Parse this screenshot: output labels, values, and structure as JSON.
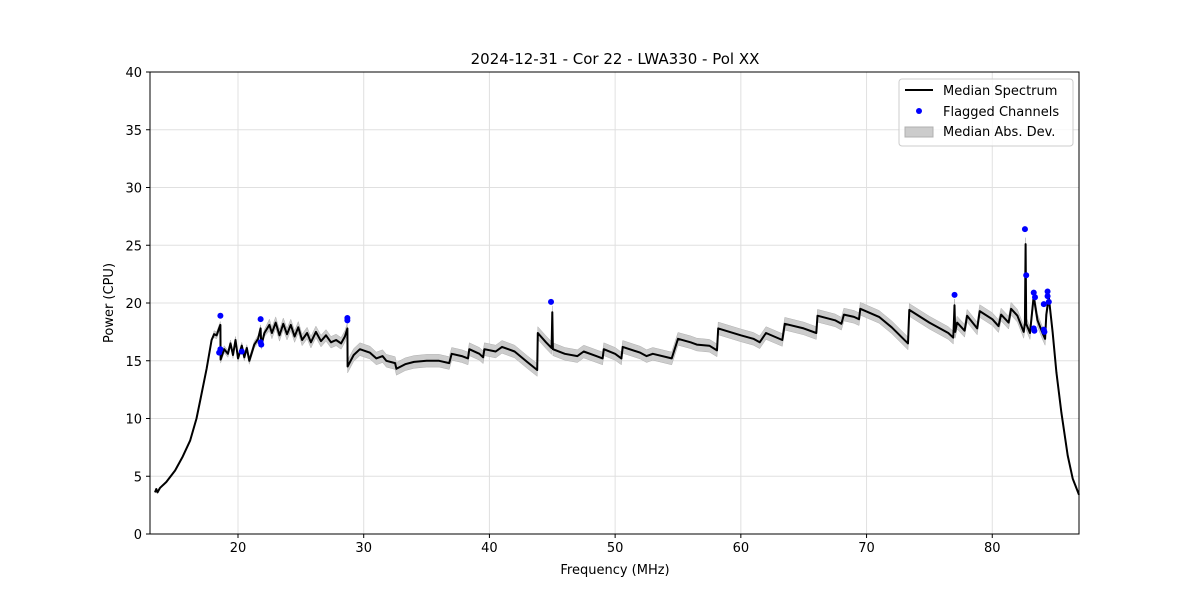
{
  "chart_data": {
    "type": "line",
    "title": "2024-12-31 - Cor 22 - LWA330 - Pol XX",
    "xlabel": "Frequency (MHz)",
    "ylabel": "Power (CPU)",
    "xlim": [
      13.0,
      86.9
    ],
    "ylim": [
      0,
      40
    ],
    "xticks": [
      20,
      30,
      40,
      50,
      60,
      70,
      80
    ],
    "yticks": [
      0,
      5,
      10,
      15,
      20,
      25,
      30,
      35,
      40
    ],
    "grid": true,
    "legend_position": "top-right",
    "legend": [
      "Median Spectrum",
      "Flagged Channels",
      "Median Abs. Dev."
    ],
    "colors": {
      "line": "#000000",
      "flagged": "#0000ff",
      "band": "#cccccc"
    },
    "series": [
      {
        "name": "Median Spectrum",
        "points": [
          [
            13.4,
            3.6
          ],
          [
            13.5,
            3.9
          ],
          [
            13.6,
            3.6
          ],
          [
            13.8,
            4.0
          ],
          [
            14.3,
            4.5
          ],
          [
            15.0,
            5.5
          ],
          [
            15.6,
            6.7
          ],
          [
            16.2,
            8.1
          ],
          [
            16.7,
            10.0
          ],
          [
            17.0,
            11.6
          ],
          [
            17.5,
            14.3
          ],
          [
            17.9,
            16.8
          ],
          [
            18.1,
            17.3
          ],
          [
            18.3,
            17.2
          ],
          [
            18.5,
            17.8
          ],
          [
            18.6,
            18.1
          ],
          [
            18.62,
            15.1
          ],
          [
            18.9,
            16.0
          ],
          [
            19.2,
            15.6
          ],
          [
            19.4,
            16.5
          ],
          [
            19.6,
            15.5
          ],
          [
            19.8,
            16.8
          ],
          [
            20.0,
            15.2
          ],
          [
            20.3,
            16.3
          ],
          [
            20.5,
            15.3
          ],
          [
            20.7,
            16.1
          ],
          [
            20.9,
            15.0
          ],
          [
            21.3,
            16.4
          ],
          [
            21.6,
            16.9
          ],
          [
            21.8,
            17.8
          ],
          [
            21.85,
            16.3
          ],
          [
            22.1,
            17.4
          ],
          [
            22.5,
            18.1
          ],
          [
            22.7,
            17.4
          ],
          [
            23.0,
            18.3
          ],
          [
            23.3,
            17.2
          ],
          [
            23.6,
            18.2
          ],
          [
            23.9,
            17.3
          ],
          [
            24.2,
            18.1
          ],
          [
            24.5,
            17.1
          ],
          [
            24.8,
            17.9
          ],
          [
            25.1,
            16.8
          ],
          [
            25.5,
            17.4
          ],
          [
            25.8,
            16.6
          ],
          [
            26.2,
            17.5
          ],
          [
            26.6,
            16.7
          ],
          [
            27.0,
            17.2
          ],
          [
            27.4,
            16.6
          ],
          [
            27.8,
            16.8
          ],
          [
            28.2,
            16.5
          ],
          [
            28.5,
            17.1
          ],
          [
            28.7,
            17.8
          ],
          [
            28.72,
            14.5
          ],
          [
            29.2,
            15.5
          ],
          [
            29.7,
            16.0
          ],
          [
            30.5,
            15.7
          ],
          [
            31.0,
            15.2
          ],
          [
            31.5,
            15.4
          ],
          [
            31.8,
            15.0
          ],
          [
            32.5,
            14.8
          ],
          [
            32.6,
            14.3
          ],
          [
            33.3,
            14.7
          ],
          [
            34.0,
            14.9
          ],
          [
            35.0,
            15.0
          ],
          [
            36.0,
            15.0
          ],
          [
            36.8,
            14.8
          ],
          [
            37.0,
            15.6
          ],
          [
            37.8,
            15.4
          ],
          [
            38.3,
            15.2
          ],
          [
            38.4,
            16.0
          ],
          [
            39.2,
            15.6
          ],
          [
            39.5,
            15.3
          ],
          [
            39.6,
            16.0
          ],
          [
            40.5,
            15.8
          ],
          [
            41.0,
            16.2
          ],
          [
            42.0,
            15.8
          ],
          [
            43.0,
            14.9
          ],
          [
            43.8,
            14.2
          ],
          [
            43.85,
            17.4
          ],
          [
            44.5,
            16.6
          ],
          [
            44.95,
            16.1
          ],
          [
            45.0,
            19.2
          ],
          [
            45.05,
            16.0
          ],
          [
            46.0,
            15.6
          ],
          [
            47.0,
            15.4
          ],
          [
            47.5,
            15.8
          ],
          [
            48.5,
            15.4
          ],
          [
            49.0,
            15.2
          ],
          [
            49.1,
            16.0
          ],
          [
            50.0,
            15.6
          ],
          [
            50.5,
            15.2
          ],
          [
            50.6,
            16.2
          ],
          [
            52.0,
            15.7
          ],
          [
            52.5,
            15.4
          ],
          [
            53.0,
            15.6
          ],
          [
            54.5,
            15.2
          ],
          [
            55.0,
            16.9
          ],
          [
            56.0,
            16.6
          ],
          [
            56.5,
            16.4
          ],
          [
            57.5,
            16.3
          ],
          [
            58.1,
            15.9
          ],
          [
            58.2,
            17.8
          ],
          [
            60.0,
            17.2
          ],
          [
            61.0,
            16.9
          ],
          [
            61.5,
            16.6
          ],
          [
            62.0,
            17.4
          ],
          [
            63.3,
            16.8
          ],
          [
            63.5,
            18.2
          ],
          [
            65.0,
            17.8
          ],
          [
            66.0,
            17.4
          ],
          [
            66.1,
            18.9
          ],
          [
            67.5,
            18.5
          ],
          [
            68.0,
            18.2
          ],
          [
            68.2,
            19.0
          ],
          [
            69.0,
            18.8
          ],
          [
            69.4,
            18.6
          ],
          [
            69.5,
            19.5
          ],
          [
            71.0,
            18.8
          ],
          [
            72.0,
            17.9
          ],
          [
            73.3,
            16.5
          ],
          [
            73.4,
            19.4
          ],
          [
            75.0,
            18.3
          ],
          [
            76.5,
            17.4
          ],
          [
            76.9,
            17.0
          ],
          [
            77.0,
            19.8
          ],
          [
            77.05,
            17.5
          ],
          [
            77.2,
            18.3
          ],
          [
            77.8,
            17.6
          ],
          [
            78.0,
            18.9
          ],
          [
            78.8,
            17.8
          ],
          [
            79.0,
            19.3
          ],
          [
            80.0,
            18.6
          ],
          [
            80.5,
            18.0
          ],
          [
            80.7,
            19.0
          ],
          [
            81.3,
            18.3
          ],
          [
            81.5,
            19.5
          ],
          [
            82.0,
            18.9
          ],
          [
            82.5,
            17.5
          ],
          [
            82.6,
            18.2
          ],
          [
            82.65,
            25.1
          ],
          [
            82.7,
            18.2
          ],
          [
            83.0,
            17.4
          ],
          [
            83.3,
            20.6
          ],
          [
            83.6,
            18.5
          ],
          [
            84.0,
            17.4
          ],
          [
            84.2,
            16.9
          ],
          [
            84.3,
            19.0
          ],
          [
            84.5,
            20.5
          ],
          [
            84.8,
            17.5
          ],
          [
            85.1,
            14.0
          ],
          [
            85.5,
            10.5
          ],
          [
            86.0,
            6.8
          ],
          [
            86.4,
            4.8
          ],
          [
            86.9,
            3.4
          ]
        ]
      },
      {
        "name": "Flagged Channels",
        "points": [
          [
            18.6,
            18.9
          ],
          [
            18.5,
            15.7
          ],
          [
            18.6,
            16.0
          ],
          [
            20.3,
            15.8
          ],
          [
            21.8,
            18.6
          ],
          [
            21.8,
            16.6
          ],
          [
            21.85,
            16.4
          ],
          [
            28.7,
            18.5
          ],
          [
            28.7,
            18.7
          ],
          [
            44.9,
            20.1
          ],
          [
            77.0,
            20.7
          ],
          [
            82.6,
            26.4
          ],
          [
            82.7,
            22.4
          ],
          [
            83.3,
            20.9
          ],
          [
            83.4,
            20.5
          ],
          [
            83.3,
            17.8
          ],
          [
            83.35,
            17.6
          ],
          [
            84.1,
            17.7
          ],
          [
            84.15,
            17.5
          ],
          [
            84.1,
            19.9
          ],
          [
            84.4,
            21.0
          ],
          [
            84.4,
            20.6
          ],
          [
            84.5,
            20.1
          ]
        ]
      },
      {
        "name": "Median Abs. Dev.",
        "segments": [
          {
            "from": 13.0,
            "to": 18.0,
            "mad": 0.0
          },
          {
            "from": 18.0,
            "to": 22.3,
            "mad": 0.3
          },
          {
            "from": 22.3,
            "to": 28.7,
            "mad": 0.5
          },
          {
            "from": 28.7,
            "to": 84.6,
            "mad": 0.55
          },
          {
            "from": 84.6,
            "to": 86.9,
            "mad": 0.0
          }
        ]
      }
    ]
  }
}
